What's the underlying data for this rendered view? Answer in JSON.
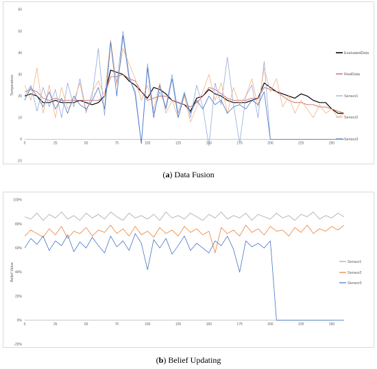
{
  "captions": [
    {
      "label": "a",
      "text": "Data Fusion"
    },
    {
      "label": "b",
      "text": "Belief Updating"
    }
  ],
  "chart_data": [
    {
      "type": "line",
      "title": "",
      "xlabel": "",
      "ylabel": "Temperature",
      "xlim": [
        0,
        250
      ],
      "ylim": [
        -10,
        60
      ],
      "x_ticks": [
        0,
        25,
        50,
        75,
        100,
        125,
        150,
        175,
        200,
        225,
        250
      ],
      "y_ticks": [
        -10,
        0,
        10,
        20,
        30,
        40,
        50,
        60
      ],
      "legend_position": "right",
      "x_step": 5,
      "series": [
        {
          "name": "EvaluatedData",
          "color": "#000000",
          "values": [
            20,
            21,
            20,
            17,
            17,
            18,
            17,
            17,
            17,
            18,
            17,
            16,
            17,
            20,
            32,
            31,
            30,
            27,
            25,
            22,
            19,
            24,
            23,
            21,
            18,
            17,
            16,
            13,
            19,
            20,
            23,
            21,
            20,
            18,
            17,
            17,
            17,
            18,
            19,
            26,
            24,
            22,
            21,
            20,
            19,
            21,
            20,
            18,
            17,
            17,
            14,
            12,
            12
          ]
        },
        {
          "name": "RealData",
          "color": "#c0504d",
          "values": [
            22,
            23,
            22,
            19,
            18,
            19,
            18,
            18,
            18,
            18,
            18,
            18,
            18,
            20,
            29,
            29,
            30,
            28,
            27,
            22,
            18,
            19,
            20,
            20,
            18,
            17,
            16,
            15,
            17,
            20,
            24,
            23,
            21,
            19,
            18,
            18,
            18,
            19,
            19,
            24,
            23,
            22,
            20,
            18,
            17,
            17,
            16,
            16,
            15,
            15,
            14,
            13,
            12
          ]
        },
        {
          "name": "Sensor1",
          "color": "#8ea9db",
          "values": [
            20,
            25,
            13,
            24,
            15,
            23,
            10,
            26,
            15,
            28,
            13,
            20,
            42,
            11,
            45,
            26,
            50,
            30,
            20,
            -2,
            35,
            12,
            22,
            15,
            30,
            12,
            22,
            10,
            25,
            15,
            -3,
            26,
            16,
            38,
            16,
            -2,
            20,
            25,
            10,
            36,
            0,
            0,
            0,
            0,
            0,
            0,
            0,
            0,
            0,
            0,
            0,
            0,
            0
          ]
        },
        {
          "name": "Sensor2",
          "color": "#f4b183",
          "values": [
            25,
            18,
            33,
            12,
            25,
            10,
            24,
            14,
            18,
            26,
            12,
            22,
            27,
            20,
            46,
            25,
            42,
            35,
            28,
            18,
            25,
            14,
            26,
            12,
            18,
            10,
            20,
            8,
            15,
            22,
            30,
            18,
            26,
            12,
            24,
            16,
            20,
            28,
            15,
            33,
            22,
            28,
            15,
            20,
            12,
            18,
            14,
            10,
            16,
            12,
            14,
            10,
            12
          ]
        },
        {
          "name": "Sensor3",
          "color": "#4472c4",
          "values": [
            18,
            24,
            20,
            15,
            22,
            14,
            19,
            12,
            20,
            16,
            14,
            18,
            24,
            14,
            45,
            20,
            48,
            28,
            22,
            -2,
            33,
            10,
            25,
            14,
            28,
            10,
            21,
            12,
            18,
            14,
            20,
            16,
            18,
            12,
            15,
            16,
            14,
            18,
            16,
            22,
            0,
            0,
            0,
            0,
            0,
            0,
            0,
            0,
            0,
            0,
            0,
            0,
            0
          ]
        }
      ]
    },
    {
      "type": "line",
      "title": "",
      "xlabel": "",
      "ylabel": "Belief Value",
      "xlim": [
        0,
        250
      ],
      "ylim": [
        -20,
        100
      ],
      "x_ticks": [
        0,
        25,
        50,
        75,
        100,
        125,
        150,
        175,
        200,
        225,
        250
      ],
      "y_ticks": [
        "-20%",
        "0%",
        "20%",
        "40%",
        "60%",
        "80%",
        "100%"
      ],
      "y_tick_values": [
        -20,
        0,
        20,
        40,
        60,
        80,
        100
      ],
      "legend_position": "right",
      "x_step": 5,
      "series": [
        {
          "name": "Sensor1",
          "color": "#a6a6a6",
          "values": [
            86,
            84,
            89,
            83,
            88,
            85,
            90,
            84,
            87,
            83,
            89,
            85,
            88,
            84,
            90,
            86,
            83,
            89,
            85,
            87,
            84,
            88,
            83,
            90,
            85,
            87,
            84,
            89,
            86,
            83,
            88,
            85,
            90,
            84,
            87,
            85,
            89,
            83,
            88,
            86,
            84,
            89,
            85,
            87,
            83,
            88,
            86,
            90,
            84,
            87,
            85,
            89,
            86
          ]
        },
        {
          "name": "Sensor2",
          "color": "#ed7d31",
          "values": [
            70,
            75,
            72,
            69,
            76,
            71,
            78,
            68,
            74,
            72,
            77,
            70,
            75,
            73,
            79,
            72,
            76,
            70,
            78,
            71,
            74,
            69,
            77,
            72,
            75,
            70,
            78,
            73,
            76,
            71,
            74,
            56,
            77,
            72,
            75,
            70,
            79,
            73,
            76,
            71,
            78,
            74,
            75,
            70,
            77,
            73,
            79,
            72,
            76,
            74,
            78,
            75,
            79
          ]
        },
        {
          "name": "Sensor3",
          "color": "#4472c4",
          "values": [
            60,
            68,
            63,
            70,
            58,
            66,
            62,
            71,
            57,
            65,
            60,
            69,
            62,
            56,
            70,
            61,
            66,
            58,
            72,
            64,
            42,
            67,
            60,
            68,
            55,
            62,
            70,
            58,
            64,
            60,
            56,
            66,
            62,
            70,
            59,
            40,
            66,
            61,
            64,
            60,
            66,
            0,
            0,
            0,
            0,
            0,
            0,
            0,
            0,
            0,
            0,
            0,
            0
          ]
        }
      ]
    }
  ]
}
